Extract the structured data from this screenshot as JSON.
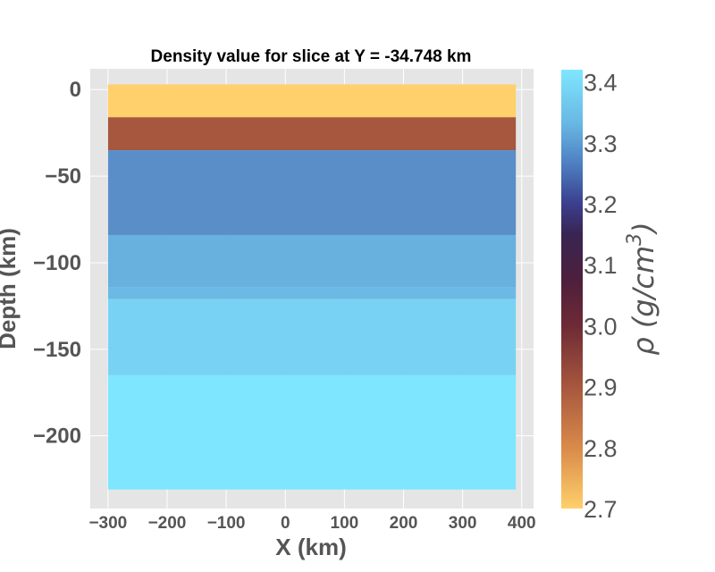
{
  "chart_data": {
    "type": "heatmap",
    "title": "Density value for slice at Y = -34.748 km",
    "xlabel": "X (km)",
    "ylabel": "Depth (km)",
    "xlim": [
      -330,
      420
    ],
    "ylim": [
      -242,
      12
    ],
    "x_extent": [
      -300,
      390
    ],
    "xticks": [
      -300,
      -200,
      -100,
      0,
      100,
      200,
      300,
      400
    ],
    "yticks": [
      0,
      -50,
      -100,
      -150,
      -200
    ],
    "grid": true,
    "layers": [
      {
        "top": 3,
        "bottom": -16,
        "density": 2.7,
        "color": "#ffd06b"
      },
      {
        "top": -16,
        "bottom": -35,
        "density": 2.9,
        "color": "#a6573e"
      },
      {
        "top": -35,
        "bottom": -84,
        "density": 3.29,
        "color": "#5a8ec8"
      },
      {
        "top": -84,
        "bottom": -114,
        "density": 3.32,
        "color": "#68b0dd"
      },
      {
        "top": -114,
        "bottom": -121,
        "density": 3.33,
        "color": "#6db9e5"
      },
      {
        "top": -121,
        "bottom": -165,
        "density": 3.36,
        "color": "#78d2f4"
      },
      {
        "top": -165,
        "bottom": -231,
        "density": 3.42,
        "color": "#7fe6ff"
      }
    ],
    "colorbar": {
      "label": "ρ (g/cm³)",
      "label_main": "ρ (g/cm",
      "label_sup": "3",
      "label_close": ")",
      "range": [
        2.7,
        3.42
      ],
      "ticks": [
        2.7,
        2.8,
        2.9,
        3.0,
        3.1,
        3.2,
        3.3,
        3.4
      ],
      "tick_labels": [
        "2.7",
        "2.8",
        "2.9",
        "3.0",
        "3.1",
        "3.2",
        "3.3",
        "3.4"
      ],
      "stops": [
        {
          "value": 2.7,
          "color": "#ffd06b"
        },
        {
          "value": 2.8,
          "color": "#d98a4a"
        },
        {
          "value": 2.9,
          "color": "#a6573e"
        },
        {
          "value": 3.0,
          "color": "#6e2a35"
        },
        {
          "value": 3.08,
          "color": "#4b1f3e"
        },
        {
          "value": 3.15,
          "color": "#392551"
        },
        {
          "value": 3.2,
          "color": "#3a3f8e"
        },
        {
          "value": 3.27,
          "color": "#4f83c4"
        },
        {
          "value": 3.33,
          "color": "#68b6e3"
        },
        {
          "value": 3.42,
          "color": "#7fe6ff"
        }
      ]
    }
  }
}
